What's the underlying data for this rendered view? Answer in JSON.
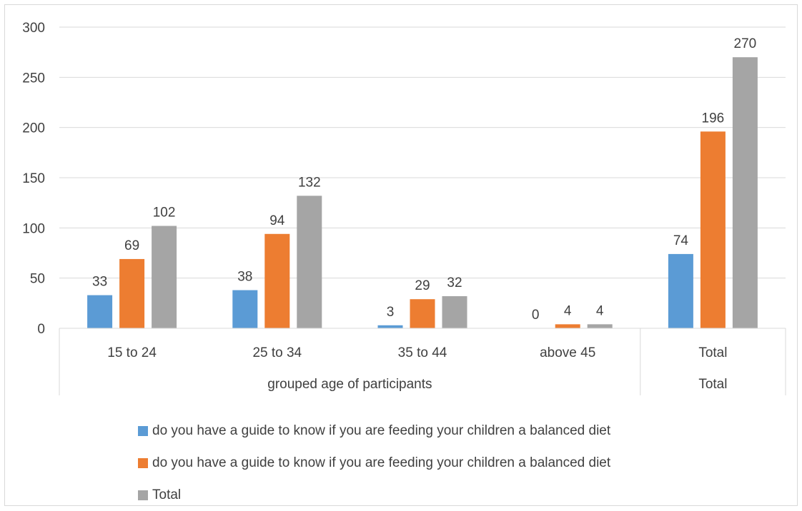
{
  "chart_data": {
    "type": "bar",
    "categories": [
      "15 to 24",
      "25 to 34",
      "35 to 44",
      "above 45",
      "Total"
    ],
    "category_groups": [
      {
        "label": "grouped age of participants",
        "categories": [
          "15 to 24",
          "25 to 34",
          "35 to 44",
          "above 45"
        ]
      },
      {
        "label": "Total",
        "categories": [
          "Total"
        ]
      }
    ],
    "series": [
      {
        "name": "do you have a guide to know if you are feeding your children a balanced diet",
        "color": "#5b9bd5",
        "values": [
          33,
          38,
          3,
          0,
          74
        ]
      },
      {
        "name": "do you have a guide to know if you are feeding your children a balanced diet",
        "color": "#ed7d31",
        "values": [
          69,
          94,
          29,
          4,
          196
        ]
      },
      {
        "name": "Total",
        "color": "#a5a5a5",
        "values": [
          102,
          132,
          32,
          4,
          270
        ]
      }
    ],
    "yticks": [
      "0",
      "50",
      "100",
      "150",
      "200",
      "250",
      "300"
    ],
    "ylim": [
      0,
      300
    ],
    "grid": true,
    "data_labels": true,
    "legend_position": "bottom"
  }
}
